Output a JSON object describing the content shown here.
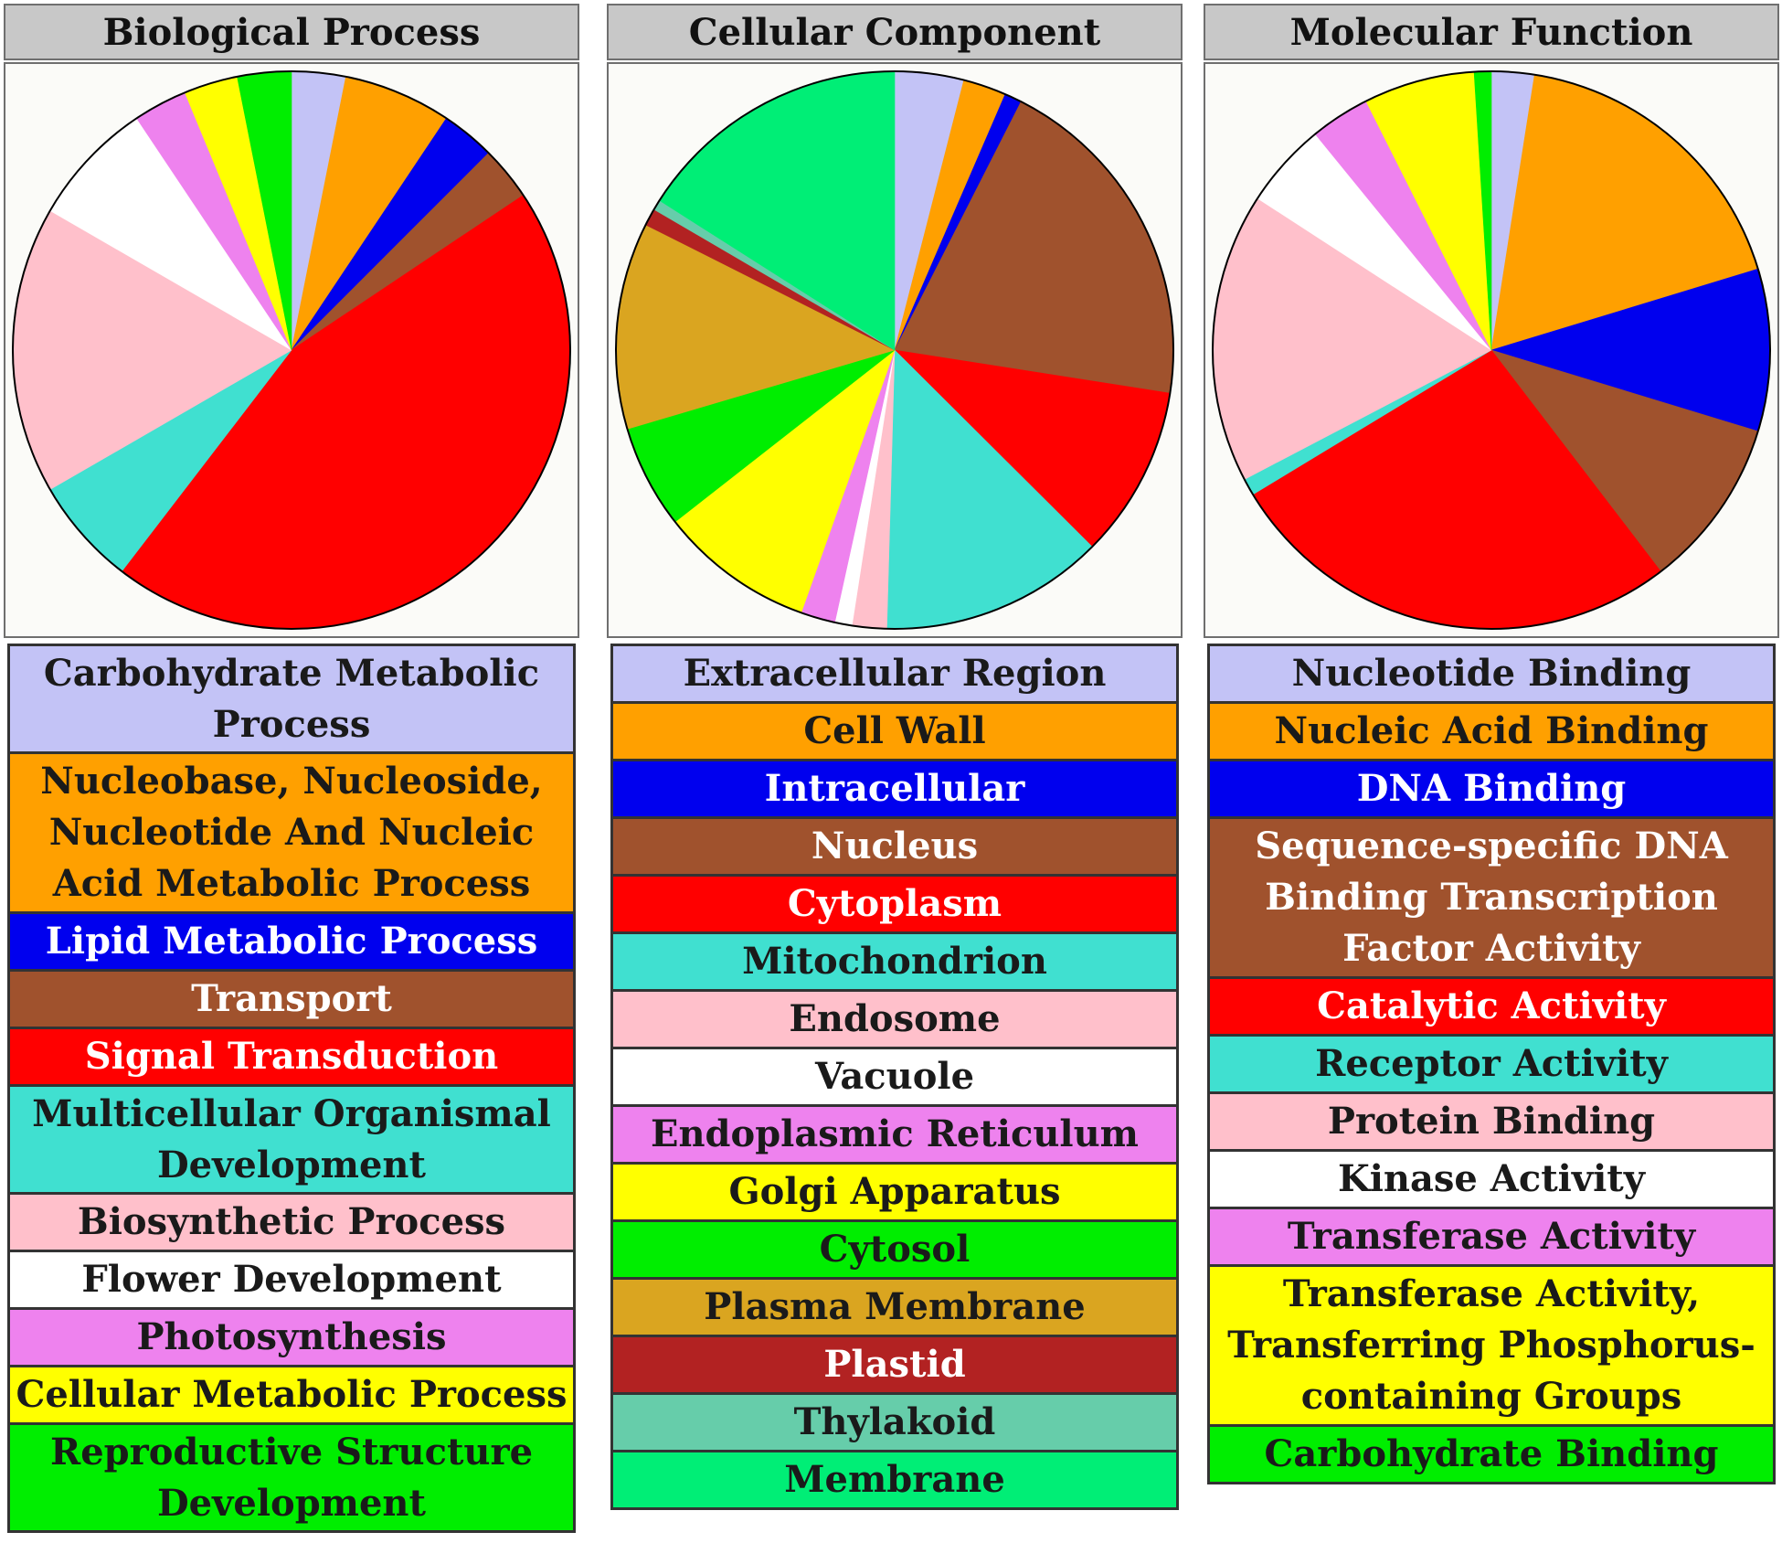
{
  "chart_data": [
    {
      "type": "pie",
      "title": "Biological Process",
      "slices": [
        {
          "label": "Carbohydrate Metabolic Process",
          "value": 3,
          "color": "#c3c3f6",
          "text_color": "#1a1a1a"
        },
        {
          "label": "Nucleobase, Nucleoside, Nucleotide And Nucleic Acid Metabolic Process",
          "value": 6,
          "color": "#ffa000",
          "text_color": "#1a1a1a"
        },
        {
          "label": "Lipid Metabolic Process",
          "value": 3,
          "color": "#0000ee",
          "text_color": "#ffffff"
        },
        {
          "label": "Transport",
          "value": 3,
          "color": "#a0522d",
          "text_color": "#ffffff"
        },
        {
          "label": "Signal Transduction",
          "value": 43,
          "color": "#ff0000",
          "text_color": "#ffffff"
        },
        {
          "label": "Multicellular Organismal Development",
          "value": 6,
          "color": "#40e0d0",
          "text_color": "#1a1a1a"
        },
        {
          "label": "Biosynthetic Process",
          "value": 16,
          "color": "#ffc0cb",
          "text_color": "#1a1a1a"
        },
        {
          "label": "Flower Development",
          "value": 7,
          "color": "#ffffff",
          "text_color": "#1a1a1a"
        },
        {
          "label": "Photosynthesis",
          "value": 3,
          "color": "#ee82ee",
          "text_color": "#1a1a1a"
        },
        {
          "label": "Cellular Metabolic Process",
          "value": 3,
          "color": "#ffff00",
          "text_color": "#1a1a1a"
        },
        {
          "label": "Reproductive Structure Development",
          "value": 3,
          "color": "#00ee00",
          "text_color": "#1a1a1a"
        }
      ]
    },
    {
      "type": "pie",
      "title": "Cellular Component",
      "slices": [
        {
          "label": "Extracellular Region",
          "value": 4,
          "color": "#c3c3f6",
          "text_color": "#1a1a1a"
        },
        {
          "label": "Cell Wall",
          "value": 2.5,
          "color": "#ffa000",
          "text_color": "#1a1a1a"
        },
        {
          "label": "Intracellular",
          "value": 1,
          "color": "#0000ee",
          "text_color": "#ffffff"
        },
        {
          "label": "Nucleus",
          "value": 20,
          "color": "#a0522d",
          "text_color": "#ffffff"
        },
        {
          "label": "Cytoplasm",
          "value": 10,
          "color": "#ff0000",
          "text_color": "#ffffff"
        },
        {
          "label": "Mitochondrion",
          "value": 13,
          "color": "#40e0d0",
          "text_color": "#1a1a1a"
        },
        {
          "label": "Endosome",
          "value": 2,
          "color": "#ffc0cb",
          "text_color": "#1a1a1a"
        },
        {
          "label": "Vacuole",
          "value": 1,
          "color": "#ffffff",
          "text_color": "#1a1a1a"
        },
        {
          "label": "Endoplasmic Reticulum",
          "value": 2,
          "color": "#ee82ee",
          "text_color": "#1a1a1a"
        },
        {
          "label": "Golgi Apparatus",
          "value": 9,
          "color": "#ffff00",
          "text_color": "#1a1a1a"
        },
        {
          "label": "Cytosol",
          "value": 6,
          "color": "#00ee00",
          "text_color": "#1a1a1a"
        },
        {
          "label": "Plasma Membrane",
          "value": 12,
          "color": "#daa520",
          "text_color": "#1a1a1a"
        },
        {
          "label": "Plastid",
          "value": 1,
          "color": "#b22222",
          "text_color": "#ffffff"
        },
        {
          "label": "Thylakoid",
          "value": 0.6,
          "color": "#66cdaa",
          "text_color": "#1a1a1a"
        },
        {
          "label": "Membrane",
          "value": 16,
          "color": "#00ee76",
          "text_color": "#1a1a1a"
        }
      ]
    },
    {
      "type": "pie",
      "title": "Molecular Function",
      "slices": [
        {
          "label": "Nucleotide Binding",
          "value": 2.5,
          "color": "#c3c3f6",
          "text_color": "#1a1a1a"
        },
        {
          "label": "Nucleic Acid Binding",
          "value": 18,
          "color": "#ffa000",
          "text_color": "#1a1a1a"
        },
        {
          "label": "DNA Binding",
          "value": 9.5,
          "color": "#0000ee",
          "text_color": "#ffffff"
        },
        {
          "label": "Sequence-specific DNA Binding Transcription Factor Activity",
          "value": 10,
          "color": "#a0522d",
          "text_color": "#ffffff"
        },
        {
          "label": "Catalytic Activity",
          "value": 27,
          "color": "#ff0000",
          "text_color": "#ffffff"
        },
        {
          "label": "Receptor Activity",
          "value": 1,
          "color": "#40e0d0",
          "text_color": "#1a1a1a"
        },
        {
          "label": "Protein Binding",
          "value": 17,
          "color": "#ffc0cb",
          "text_color": "#1a1a1a"
        },
        {
          "label": "Kinase Activity",
          "value": 5,
          "color": "#ffffff",
          "text_color": "#1a1a1a"
        },
        {
          "label": "Transferase Activity",
          "value": 3.5,
          "color": "#ee82ee",
          "text_color": "#1a1a1a"
        },
        {
          "label": "Transferase Activity, Transferring Phosphorus-containing Groups",
          "value": 6.5,
          "color": "#ffff00",
          "text_color": "#1a1a1a"
        },
        {
          "label": "Carbohydrate Binding",
          "value": 1,
          "color": "#00ee00",
          "text_color": "#1a1a1a"
        }
      ]
    }
  ]
}
